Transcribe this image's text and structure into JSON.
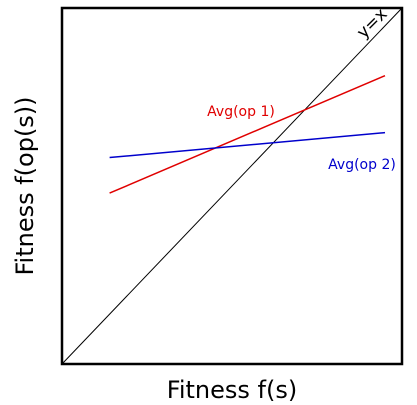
{
  "chart_data": {
    "type": "line",
    "xlabel": "Fitness f(s)",
    "ylabel": "Fitness f(op(s))",
    "xlim": [
      0,
      1
    ],
    "ylim": [
      0,
      1
    ],
    "grid": false,
    "ticks": false,
    "reference_line": {
      "label": "y=x",
      "color": "#000000",
      "x": [
        0,
        1
      ],
      "y": [
        0,
        1
      ]
    },
    "series": [
      {
        "name": "Avg(op 1)",
        "color": "#e00000",
        "x": [
          0.14,
          0.95
        ],
        "y": [
          0.48,
          0.81
        ]
      },
      {
        "name": "Avg(op 2)",
        "color": "#0000cc",
        "x": [
          0.14,
          0.95
        ],
        "y": [
          0.58,
          0.65
        ]
      }
    ]
  }
}
